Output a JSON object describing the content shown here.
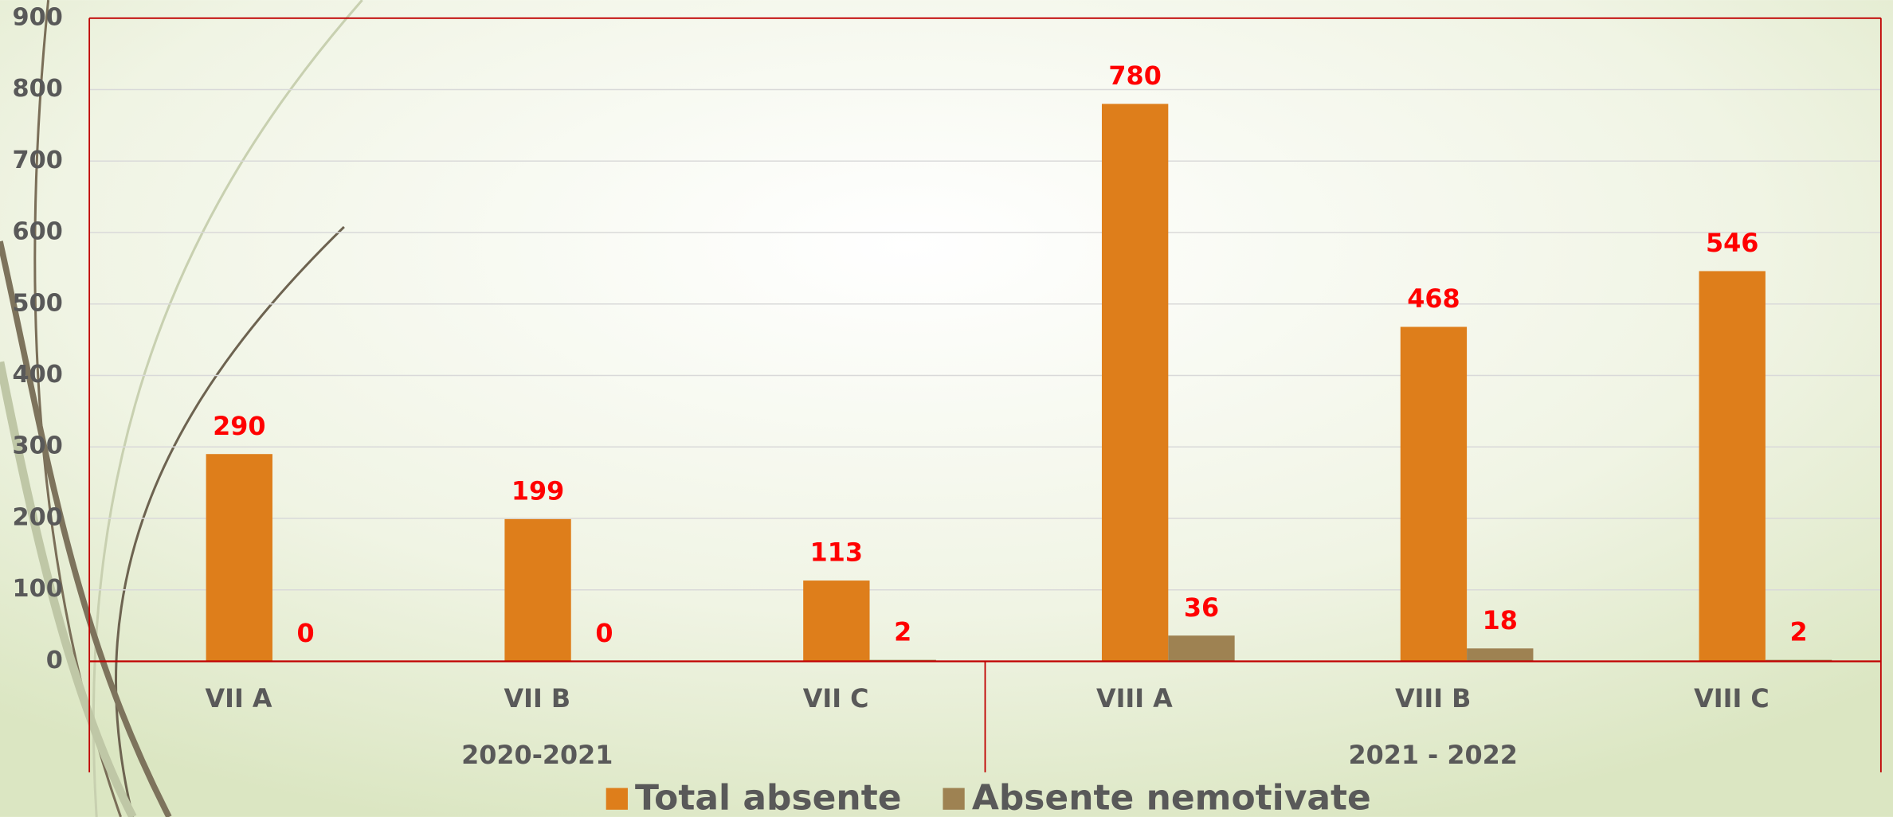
{
  "chart_data": {
    "type": "bar",
    "categories": [
      "VII A",
      "VII B",
      "VII C",
      "VIII A",
      "VIII B",
      "VIII C"
    ],
    "category_groups": [
      {
        "name": "2020-2021",
        "members": [
          "VII A",
          "VII B",
          "VII C"
        ]
      },
      {
        "name": "2021 - 2022",
        "members": [
          "VIII A",
          "VIII B",
          "VIII C"
        ]
      }
    ],
    "series": [
      {
        "name": "Total absente",
        "color": "#de7e1b",
        "values": [
          290,
          199,
          113,
          780,
          468,
          546
        ]
      },
      {
        "name": "Absente nemotivate",
        "color": "#9e8252",
        "values": [
          0,
          0,
          2,
          36,
          18,
          2
        ]
      }
    ],
    "value_label_color": "#ff0000",
    "ylim": [
      0,
      900
    ],
    "yticks": [
      0,
      100,
      200,
      300,
      400,
      500,
      600,
      700,
      800,
      900
    ],
    "grid": true,
    "legend": "bottom"
  }
}
